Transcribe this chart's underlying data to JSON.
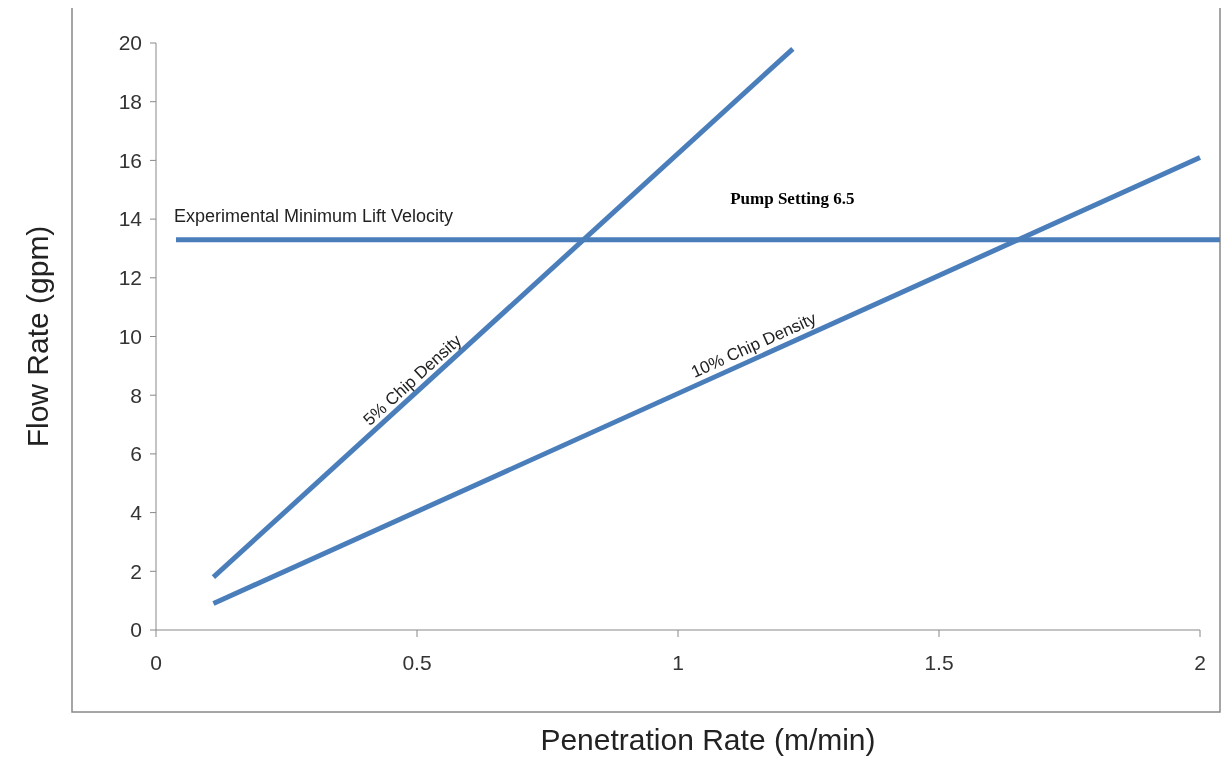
{
  "chart_data": {
    "type": "line",
    "xlabel": "Penetration Rate (m/min)",
    "ylabel": "Flow Rate (gpm)",
    "xlim": [
      0,
      2
    ],
    "xticks": [
      0,
      0.5,
      1,
      1.5,
      2
    ],
    "ylim": [
      0,
      20
    ],
    "yticks": [
      0,
      2,
      4,
      6,
      8,
      10,
      12,
      14,
      16,
      18,
      20
    ],
    "grid": false,
    "marker": "none",
    "line_style": "solid",
    "series": [
      {
        "name": "5% Chip Density",
        "color": "#4a7ebb",
        "x": [
          0.11,
          1.22
        ],
        "values": [
          1.8,
          19.8
        ]
      },
      {
        "name": "10% Chip Density",
        "color": "#4a7ebb",
        "x": [
          0.11,
          2
        ],
        "values": [
          0.9,
          16.1
        ]
      }
    ],
    "ref_lines": [
      {
        "axis": "y",
        "value": 13.3,
        "label": "Experimental Minimum Lift Velocity",
        "color": "#4a7ebb"
      }
    ],
    "annotations": [
      "Pump Setting 6.5"
    ]
  }
}
